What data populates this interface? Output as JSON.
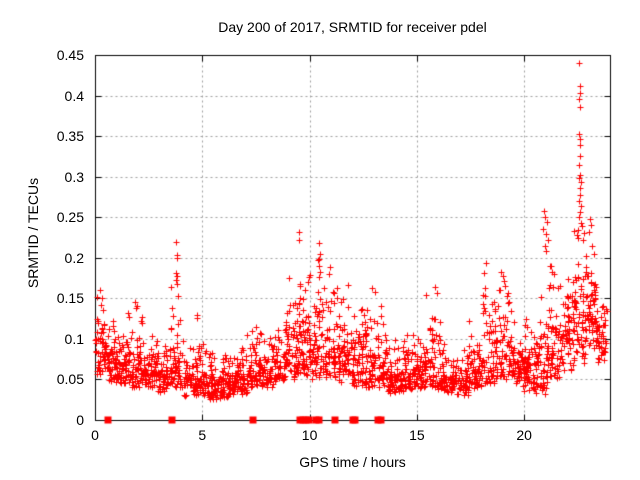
{
  "title": "Day 200 of 2017, SRMTID for receiver pdel",
  "axes": {
    "xlabel": "GPS time / hours",
    "ylabel": "SRMTID / TECUs",
    "xlim": [
      0,
      24
    ],
    "ylim": [
      0,
      0.45
    ],
    "xtick_values": [
      0,
      5,
      10,
      15,
      20
    ],
    "xtick_labels": [
      "0",
      "5",
      "10",
      "15",
      "20"
    ],
    "ytick_values": [
      0,
      0.05,
      0.1,
      0.15,
      0.2,
      0.25,
      0.3,
      0.35,
      0.4,
      0.45
    ],
    "ytick_labels": [
      "0",
      "0.05",
      "0.1",
      "0.15",
      "0.2",
      "0.25",
      "0.3",
      "0.35",
      "0.4",
      "0.45"
    ]
  },
  "chart_data": {
    "type": "scatter",
    "title": "Day 200 of 2017, SRMTID for receiver pdel",
    "xlabel": "GPS time / hours",
    "ylabel": "SRMTID / TECUs",
    "xlim": [
      0,
      24
    ],
    "ylim": [
      0,
      0.45
    ],
    "grid": {
      "x": true,
      "y": true,
      "style": "dashed",
      "color": "#9e9e9e"
    },
    "legend": "none",
    "marker": "plus",
    "marker_size": 7,
    "color": "#ff0000",
    "frame_color": "#000000",
    "seed": 20170200,
    "band_clusters_comment": "dense scatter envelope per time bin: [x_start_h, x_end_h, y_min_TECU, y_max_TECU, n_points, skew_power]",
    "band_clusters": [
      [
        0.0,
        0.5,
        0.055,
        0.155,
        55,
        1.7
      ],
      [
        0.5,
        1.0,
        0.045,
        0.14,
        55,
        1.9
      ],
      [
        1.0,
        1.5,
        0.045,
        0.135,
        55,
        1.9
      ],
      [
        1.5,
        2.2,
        0.04,
        0.145,
        70,
        1.9
      ],
      [
        2.2,
        2.8,
        0.04,
        0.11,
        60,
        2.0
      ],
      [
        2.8,
        3.5,
        0.035,
        0.105,
        65,
        2.0
      ],
      [
        3.5,
        4.1,
        0.04,
        0.185,
        55,
        2.3
      ],
      [
        4.1,
        4.7,
        0.03,
        0.1,
        55,
        2.0
      ],
      [
        4.7,
        5.2,
        0.03,
        0.105,
        55,
        2.1
      ],
      [
        5.2,
        5.9,
        0.025,
        0.095,
        65,
        1.9
      ],
      [
        5.9,
        6.5,
        0.028,
        0.09,
        60,
        1.9
      ],
      [
        6.5,
        7.1,
        0.032,
        0.1,
        60,
        1.9
      ],
      [
        7.1,
        7.7,
        0.04,
        0.125,
        60,
        2.0
      ],
      [
        7.7,
        8.3,
        0.04,
        0.115,
        55,
        2.0
      ],
      [
        8.3,
        8.9,
        0.045,
        0.14,
        55,
        1.9
      ],
      [
        8.9,
        9.5,
        0.05,
        0.185,
        60,
        1.8
      ],
      [
        9.5,
        10.1,
        0.05,
        0.21,
        65,
        1.6
      ],
      [
        10.1,
        10.7,
        0.05,
        0.2,
        60,
        1.7
      ],
      [
        10.7,
        11.3,
        0.05,
        0.185,
        55,
        1.8
      ],
      [
        11.3,
        11.9,
        0.045,
        0.17,
        55,
        1.9
      ],
      [
        11.9,
        12.5,
        0.04,
        0.15,
        60,
        1.9
      ],
      [
        12.5,
        13.1,
        0.04,
        0.165,
        60,
        2.0
      ],
      [
        13.1,
        13.6,
        0.04,
        0.155,
        50,
        2.0
      ],
      [
        13.6,
        14.2,
        0.033,
        0.105,
        55,
        2.1
      ],
      [
        14.2,
        14.8,
        0.035,
        0.11,
        60,
        1.8
      ],
      [
        14.8,
        15.4,
        0.04,
        0.115,
        60,
        1.8
      ],
      [
        15.4,
        16.1,
        0.038,
        0.165,
        60,
        2.2
      ],
      [
        16.1,
        16.7,
        0.033,
        0.11,
        55,
        2.1
      ],
      [
        16.7,
        17.4,
        0.03,
        0.095,
        60,
        1.9
      ],
      [
        17.4,
        18.0,
        0.038,
        0.125,
        55,
        2.0
      ],
      [
        18.0,
        18.6,
        0.045,
        0.19,
        55,
        2.2
      ],
      [
        18.6,
        19.3,
        0.05,
        0.18,
        60,
        1.9
      ],
      [
        19.3,
        19.9,
        0.045,
        0.155,
        55,
        2.0
      ],
      [
        19.9,
        20.5,
        0.035,
        0.14,
        60,
        1.9
      ],
      [
        20.5,
        21.1,
        0.03,
        0.155,
        60,
        1.8
      ],
      [
        21.1,
        21.7,
        0.05,
        0.21,
        60,
        2.2
      ],
      [
        21.7,
        22.3,
        0.06,
        0.2,
        60,
        1.7
      ],
      [
        22.3,
        22.9,
        0.07,
        0.25,
        65,
        1.8
      ],
      [
        22.9,
        23.4,
        0.08,
        0.22,
        60,
        1.5
      ],
      [
        23.4,
        23.85,
        0.07,
        0.165,
        40,
        1.7
      ]
    ],
    "outlier_points_comment": "individually visible high points [x_hours, y_TECU]",
    "outlier_points": [
      [
        0.1,
        0.152
      ],
      [
        0.23,
        0.16
      ],
      [
        1.88,
        0.145
      ],
      [
        1.95,
        0.14
      ],
      [
        3.78,
        0.219
      ],
      [
        3.8,
        0.203
      ],
      [
        3.82,
        0.2
      ],
      [
        3.77,
        0.181
      ],
      [
        3.81,
        0.177
      ],
      [
        3.79,
        0.173
      ],
      [
        3.83,
        0.168
      ],
      [
        4.74,
        0.129
      ],
      [
        4.76,
        0.126
      ],
      [
        9.5,
        0.232
      ],
      [
        9.53,
        0.222
      ],
      [
        10.44,
        0.218
      ],
      [
        10.47,
        0.205
      ],
      [
        10.42,
        0.198
      ],
      [
        10.45,
        0.19
      ],
      [
        10.48,
        0.183
      ],
      [
        10.43,
        0.176
      ],
      [
        10.95,
        0.189
      ],
      [
        11.8,
        0.167
      ],
      [
        12.92,
        0.163
      ],
      [
        13.03,
        0.158
      ],
      [
        15.85,
        0.164
      ],
      [
        15.92,
        0.157
      ],
      [
        18.15,
        0.181
      ],
      [
        18.2,
        0.194
      ],
      [
        18.88,
        0.16
      ],
      [
        18.93,
        0.183
      ],
      [
        19.0,
        0.178
      ],
      [
        19.06,
        0.171
      ],
      [
        19.12,
        0.165
      ],
      [
        20.9,
        0.236
      ],
      [
        20.92,
        0.258
      ],
      [
        20.95,
        0.215
      ],
      [
        20.98,
        0.25
      ],
      [
        21.0,
        0.229
      ],
      [
        21.02,
        0.208
      ],
      [
        21.05,
        0.244
      ],
      [
        21.1,
        0.222
      ],
      [
        22.48,
        0.228
      ],
      [
        22.5,
        0.234
      ],
      [
        22.54,
        0.298
      ],
      [
        22.55,
        0.44
      ],
      [
        22.55,
        0.27
      ],
      [
        22.56,
        0.353
      ],
      [
        22.56,
        0.25
      ],
      [
        22.57,
        0.396
      ],
      [
        22.57,
        0.315
      ],
      [
        22.58,
        0.412
      ],
      [
        22.58,
        0.286
      ],
      [
        22.59,
        0.339
      ],
      [
        22.6,
        0.403
      ],
      [
        22.6,
        0.346
      ],
      [
        22.6,
        0.302
      ],
      [
        22.6,
        0.257
      ],
      [
        22.61,
        0.278
      ],
      [
        22.62,
        0.386
      ],
      [
        22.62,
        0.326
      ],
      [
        22.63,
        0.243
      ],
      [
        22.64,
        0.294
      ],
      [
        22.66,
        0.264
      ],
      [
        22.7,
        0.239
      ],
      [
        22.72,
        0.222
      ],
      [
        23.0,
        0.232
      ],
      [
        23.05,
        0.248
      ],
      [
        23.1,
        0.24
      ],
      [
        23.15,
        0.215
      ],
      [
        23.25,
        0.205
      ]
    ],
    "zero_markers_comment": "solid red squares sitting on the y=0 axis line, x in hours",
    "zero_marker_x": [
      0.62,
      3.6,
      7.38,
      9.55,
      9.7,
      9.84,
      9.96,
      10.3,
      10.43,
      11.2,
      12.0,
      12.1,
      13.2,
      13.35
    ]
  }
}
